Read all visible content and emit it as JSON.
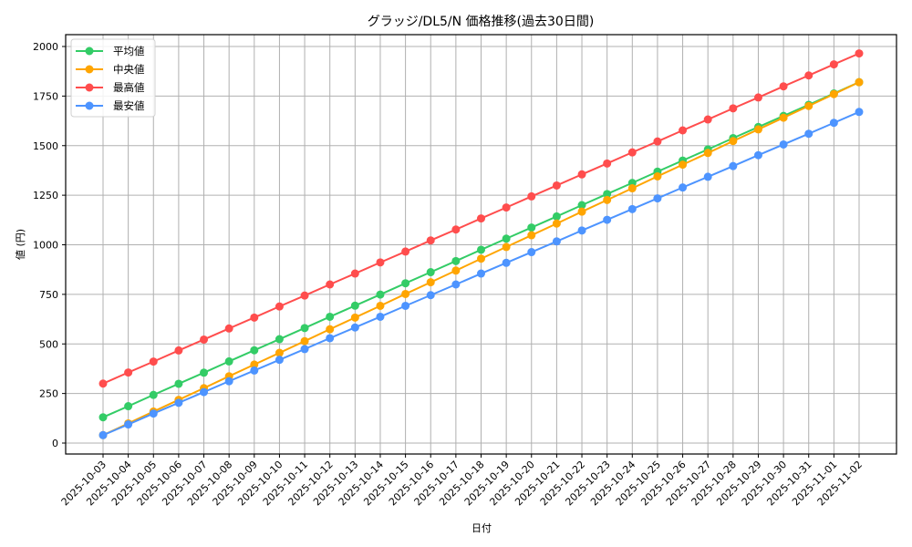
{
  "chart_data": {
    "type": "line",
    "title": "グラッジ/DL5/N 価格推移(過去30日間)",
    "xlabel": "日付",
    "ylabel": "値 (円)",
    "ylim": [
      -60,
      2060
    ],
    "yticks": [
      0,
      250,
      500,
      750,
      1000,
      1250,
      1500,
      1750,
      2000
    ],
    "grid": true,
    "legend_position": "upper left",
    "x": [
      "2025-10-03",
      "2025-10-04",
      "2025-10-05",
      "2025-10-06",
      "2025-10-07",
      "2025-10-08",
      "2025-10-09",
      "2025-10-10",
      "2025-10-11",
      "2025-10-12",
      "2025-10-13",
      "2025-10-14",
      "2025-10-15",
      "2025-10-16",
      "2025-10-17",
      "2025-10-18",
      "2025-10-19",
      "2025-10-20",
      "2025-10-21",
      "2025-10-22",
      "2025-10-23",
      "2025-10-24",
      "2025-10-25",
      "2025-10-26",
      "2025-10-27",
      "2025-10-28",
      "2025-10-29",
      "2025-10-30",
      "2025-10-31",
      "2025-11-01",
      "2025-11-02"
    ],
    "series": [
      {
        "name": "平均値",
        "color": "#33cc66",
        "values": [
          130,
          186,
          243,
          299,
          355,
          412,
          468,
          524,
          580,
          637,
          693,
          749,
          806,
          862,
          918,
          975,
          1031,
          1087,
          1143,
          1200,
          1256,
          1312,
          1369,
          1425,
          1481,
          1538,
          1594,
          1650,
          1706,
          1763,
          1820
        ]
      },
      {
        "name": "中央値",
        "color": "#ffa500",
        "values": [
          40,
          99,
          159,
          218,
          277,
          337,
          396,
          455,
          514,
          574,
          633,
          692,
          752,
          811,
          870,
          930,
          989,
          1048,
          1107,
          1167,
          1226,
          1285,
          1345,
          1404,
          1463,
          1523,
          1582,
          1641,
          1700,
          1760,
          1820
        ]
      },
      {
        "name": "最高値",
        "color": "#ff4d4d",
        "values": [
          300,
          356,
          411,
          467,
          522,
          578,
          633,
          689,
          744,
          800,
          855,
          911,
          966,
          1022,
          1077,
          1133,
          1188,
          1244,
          1299,
          1355,
          1410,
          1466,
          1521,
          1577,
          1632,
          1688,
          1743,
          1799,
          1854,
          1910,
          1965
        ]
      },
      {
        "name": "最安値",
        "color": "#4d94ff",
        "values": [
          40,
          94,
          149,
          203,
          257,
          312,
          366,
          420,
          474,
          529,
          583,
          637,
          692,
          746,
          800,
          855,
          909,
          963,
          1017,
          1072,
          1126,
          1180,
          1234,
          1289,
          1343,
          1397,
          1452,
          1506,
          1560,
          1615,
          1670
        ]
      }
    ]
  }
}
